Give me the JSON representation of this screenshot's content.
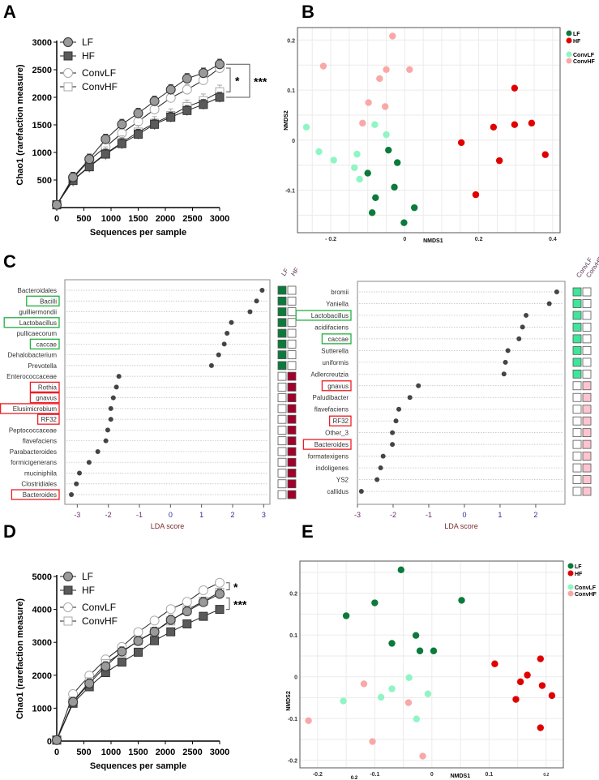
{
  "panel_letters": [
    "A",
    "B",
    "C",
    "D",
    "E"
  ],
  "colors": {
    "LF": "#0b7a3b",
    "HF": "#e00000",
    "ConvLF": "#8ff5c4",
    "ConvHF": "#f9a8a8",
    "lda_LF": "#0b7a3b",
    "lda_HF": "#a0002a",
    "lda_ConvLF": "#3ee69a",
    "lda_ConvHF": "#ffc4cf",
    "box_green": "#22b040",
    "box_red": "#ee1c24"
  },
  "chart_data": [
    {
      "id": "A",
      "type": "line",
      "title": "",
      "xlabel": "Sequences per sample",
      "ylabel": "Chao1 (rarefaction measure)",
      "xlim": [
        0,
        3000
      ],
      "ylim": [
        0,
        3000
      ],
      "xticks": [
        0,
        500,
        1000,
        1500,
        2000,
        2500,
        3000
      ],
      "yticks": [
        500,
        1000,
        1500,
        2000,
        2500,
        3000
      ],
      "x": [
        0,
        300,
        600,
        900,
        1200,
        1500,
        1800,
        2100,
        2400,
        2700,
        3000
      ],
      "series": [
        {
          "name": "LF",
          "marker": "circle",
          "fill": "#9a9a9a",
          "values": [
            50,
            550,
            880,
            1240,
            1510,
            1710,
            1930,
            2140,
            2340,
            2440,
            2600
          ],
          "err": 90
        },
        {
          "name": "HF",
          "marker": "square",
          "fill": "#5a5a5a",
          "values": [
            50,
            490,
            740,
            970,
            1160,
            1330,
            1510,
            1640,
            1760,
            1870,
            2000
          ],
          "err": 90
        },
        {
          "name": "ConvLF",
          "marker": "circle",
          "fill": "#ffffff",
          "values": [
            50,
            530,
            860,
            1100,
            1350,
            1560,
            1780,
            1990,
            2140,
            2310,
            2530
          ],
          "err": 90
        },
        {
          "name": "ConvHF",
          "marker": "square",
          "fill": "#ffffff",
          "values": [
            50,
            500,
            750,
            980,
            1180,
            1370,
            1530,
            1670,
            1830,
            1940,
            2100
          ],
          "err": 120
        }
      ],
      "significance": [
        {
          "label": "*",
          "between": [
            "ConvLF",
            "ConvHF"
          ]
        },
        {
          "label": "***",
          "between": [
            "LF",
            "HF"
          ]
        }
      ]
    },
    {
      "id": "B",
      "type": "scatter",
      "xlabel": "NMDS1",
      "ylabel": "NMDS2",
      "xlim": [
        -0.29,
        0.42
      ],
      "ylim": [
        -0.185,
        0.225
      ],
      "xticks": [
        -0.2,
        0,
        0.2,
        0.4
      ],
      "xtick_labels": [
        "- 0.2",
        "0",
        "0.2",
        "0.4"
      ],
      "yticks": [
        -0.1,
        0,
        0.1,
        0.2
      ],
      "ytick_labels": [
        "-0.1",
        "0",
        "0.1",
        "0.2"
      ],
      "grid": true,
      "legend": "right",
      "series": [
        {
          "name": "LF",
          "points": [
            [
              -0.044,
              -0.02
            ],
            [
              -0.02,
              -0.045
            ],
            [
              -0.1,
              -0.066
            ],
            [
              -0.028,
              -0.094
            ],
            [
              -0.079,
              -0.115
            ],
            [
              0.026,
              -0.135
            ],
            [
              -0.088,
              -0.145
            ],
            [
              -0.002,
              -0.165
            ]
          ]
        },
        {
          "name": "HF",
          "points": [
            [
              0.297,
              0.104
            ],
            [
              0.24,
              0.026
            ],
            [
              0.297,
              0.031
            ],
            [
              0.343,
              0.034
            ],
            [
              0.153,
              -0.005
            ],
            [
              0.38,
              -0.029
            ],
            [
              0.256,
              -0.041
            ],
            [
              0.192,
              -0.109
            ]
          ]
        },
        {
          "name": "ConvLF",
          "points": [
            [
              -0.266,
              0.026
            ],
            [
              -0.081,
              0.031
            ],
            [
              -0.05,
              0.011
            ],
            [
              -0.232,
              -0.023
            ],
            [
              -0.129,
              -0.028
            ],
            [
              -0.192,
              -0.04
            ],
            [
              -0.136,
              -0.055
            ],
            [
              -0.122,
              -0.078
            ]
          ]
        },
        {
          "name": "ConvHF",
          "points": [
            [
              -0.033,
              0.208
            ],
            [
              -0.22,
              0.148
            ],
            [
              -0.05,
              0.141
            ],
            [
              0.013,
              0.141
            ],
            [
              -0.068,
              0.123
            ],
            [
              -0.098,
              0.075
            ],
            [
              -0.053,
              0.067
            ],
            [
              -0.114,
              0.034
            ]
          ]
        }
      ]
    },
    {
      "id": "C-left",
      "type": "lollipop",
      "xlabel": "LDA score",
      "xlim": [
        -3.4,
        3.2
      ],
      "xticks": [
        -3,
        -2,
        -1,
        0,
        1,
        2,
        3
      ],
      "groups": [
        "LF",
        "HF"
      ],
      "rows": [
        {
          "label": "Bacteroidales",
          "value": 2.95,
          "group": "LF",
          "box": ""
        },
        {
          "label": "Bacilli",
          "value": 2.77,
          "group": "LF",
          "box": "green"
        },
        {
          "label": "guilliermondii",
          "value": 2.56,
          "group": "LF",
          "box": ""
        },
        {
          "label": "Lactobacillus",
          "value": 1.96,
          "group": "LF",
          "box": "green"
        },
        {
          "label": "pullicaecorum",
          "value": 1.82,
          "group": "LF",
          "box": ""
        },
        {
          "label": "caccae",
          "value": 1.73,
          "group": "LF",
          "box": "green"
        },
        {
          "label": "Dehalobacterium",
          "value": 1.55,
          "group": "LF",
          "box": ""
        },
        {
          "label": "Prevotella",
          "value": 1.32,
          "group": "LF",
          "box": ""
        },
        {
          "label": "Enterococcaceae",
          "value": -1.66,
          "group": "HF",
          "box": ""
        },
        {
          "label": "Rothia",
          "value": -1.74,
          "group": "HF",
          "box": "red"
        },
        {
          "label": "gnavus",
          "value": -1.84,
          "group": "HF",
          "box": "red"
        },
        {
          "label": "Elusimicrobium",
          "value": -1.92,
          "group": "HF",
          "box": "red"
        },
        {
          "label": "RF32",
          "value": -1.92,
          "group": "HF",
          "box": "red"
        },
        {
          "label": "Peptococcaceae",
          "value": -2.02,
          "group": "HF",
          "box": ""
        },
        {
          "label": "flavefaciens",
          "value": -2.08,
          "group": "HF",
          "box": ""
        },
        {
          "label": "Parabacteroides",
          "value": -2.34,
          "group": "HF",
          "box": ""
        },
        {
          "label": "formicigenerans",
          "value": -2.62,
          "group": "HF",
          "box": ""
        },
        {
          "label": "muciniphila",
          "value": -2.93,
          "group": "HF",
          "box": ""
        },
        {
          "label": "Clostridiales",
          "value": -3.03,
          "group": "HF",
          "box": ""
        },
        {
          "label": "Bacteroides",
          "value": -3.19,
          "group": "HF",
          "box": "red"
        }
      ]
    },
    {
      "id": "C-right",
      "type": "lollipop",
      "xlabel": "LDA score",
      "xlim": [
        -3.0,
        2.82
      ],
      "xticks": [
        -3,
        -2,
        -1,
        0,
        1,
        2
      ],
      "groups": [
        "ConvLF",
        "ConvHF"
      ],
      "rows": [
        {
          "label": "bromii",
          "value": 2.59,
          "group": "ConvLF",
          "box": ""
        },
        {
          "label": "Yaniella",
          "value": 2.38,
          "group": "ConvLF",
          "box": ""
        },
        {
          "label": "Lactobacillus",
          "value": 1.73,
          "group": "ConvLF",
          "box": "green"
        },
        {
          "label": "acidifaciens",
          "value": 1.63,
          "group": "ConvLF",
          "box": ""
        },
        {
          "label": "caccae",
          "value": 1.53,
          "group": "ConvLF",
          "box": "green"
        },
        {
          "label": "Sutterella",
          "value": 1.22,
          "group": "ConvLF",
          "box": ""
        },
        {
          "label": "uniformis",
          "value": 1.15,
          "group": "ConvLF",
          "box": ""
        },
        {
          "label": "Adlercreutzia",
          "value": 1.11,
          "group": "ConvLF",
          "box": ""
        },
        {
          "label": "gnavus",
          "value": -1.29,
          "group": "ConvHF",
          "box": "red"
        },
        {
          "label": "Paludibacter",
          "value": -1.53,
          "group": "ConvHF",
          "box": ""
        },
        {
          "label": "flavefaciens",
          "value": -1.84,
          "group": "ConvHF",
          "box": ""
        },
        {
          "label": "RF32",
          "value": -1.92,
          "group": "ConvHF",
          "box": "red"
        },
        {
          "label": "Other_3",
          "value": -2.02,
          "group": "ConvHF",
          "box": ""
        },
        {
          "label": "Bacteroides",
          "value": -2.02,
          "group": "ConvHF",
          "box": "red"
        },
        {
          "label": "formatexigens",
          "value": -2.28,
          "group": "ConvHF",
          "box": ""
        },
        {
          "label": "indoligenes",
          "value": -2.35,
          "group": "ConvHF",
          "box": ""
        },
        {
          "label": "YS2",
          "value": -2.45,
          "group": "ConvHF",
          "box": ""
        },
        {
          "label": "callidus",
          "value": -2.89,
          "group": "ConvHF",
          "box": ""
        }
      ]
    },
    {
      "id": "D",
      "type": "line",
      "xlabel": "Sequences per sample",
      "ylabel": "Chao1 (rarefaction measure)",
      "xlim": [
        0,
        3000
      ],
      "ylim": [
        0,
        5000
      ],
      "xticks": [
        0,
        500,
        1000,
        1500,
        2000,
        2500,
        3000
      ],
      "yticks": [
        0,
        1000,
        2000,
        3000,
        4000,
        5000
      ],
      "x": [
        0,
        300,
        600,
        900,
        1200,
        1500,
        1800,
        2100,
        2400,
        2700,
        3000
      ],
      "series": [
        {
          "name": "LF",
          "marker": "circle",
          "fill": "#9a9a9a",
          "values": [
            30,
            1190,
            1750,
            2270,
            2720,
            3040,
            3320,
            3680,
            3940,
            4220,
            4470
          ],
          "err": 140
        },
        {
          "name": "HF",
          "marker": "square",
          "fill": "#5a5a5a",
          "values": [
            30,
            1150,
            1650,
            2080,
            2400,
            2700,
            3050,
            3320,
            3560,
            3790,
            4000
          ],
          "err": 60
        },
        {
          "name": "ConvLF",
          "marker": "circle",
          "fill": "#ffffff",
          "values": [
            30,
            1430,
            1990,
            2480,
            2860,
            3310,
            3660,
            4010,
            4230,
            4580,
            4810
          ],
          "err": 110
        },
        {
          "name": "ConvHF",
          "marker": "square",
          "fill": "#ffffff",
          "values": [
            30,
            1200,
            1800,
            2350,
            2700,
            3050,
            3330,
            3650,
            3980,
            4250,
            4520
          ],
          "err": 120
        }
      ],
      "significance": [
        {
          "label": "*",
          "between": [
            "ConvLF",
            "LF"
          ]
        },
        {
          "label": "***",
          "between": [
            "LF",
            "HF"
          ]
        }
      ]
    },
    {
      "id": "E",
      "type": "scatter",
      "xlabel": "NMDS1",
      "ylabel": "NMDS2",
      "xlim": [
        -0.231,
        0.23
      ],
      "ylim": [
        -0.218,
        0.277
      ],
      "xticks": [
        -0.2,
        -0.1,
        0,
        0.1,
        0.2
      ],
      "xtick_labels": [
        "-0.2",
        "-0.1",
        "0",
        "0.1",
        "0.2"
      ],
      "yticks": [
        -0.2,
        -0.1,
        0,
        0.1,
        0.2
      ],
      "ytick_labels": [
        "-0.2",
        "-0.1",
        "0",
        "0.1",
        "0.2"
      ],
      "extra_label": "0.2",
      "grid": true,
      "legend": "right",
      "series": [
        {
          "name": "LF",
          "points": [
            [
              -0.054,
              0.256
            ],
            [
              -0.1,
              0.177
            ],
            [
              0.052,
              0.183
            ],
            [
              -0.15,
              0.146
            ],
            [
              -0.028,
              0.099
            ],
            [
              -0.07,
              0.08
            ],
            [
              -0.021,
              0.062
            ],
            [
              0.003,
              0.062
            ]
          ]
        },
        {
          "name": "HF",
          "points": [
            [
              0.11,
              0.031
            ],
            [
              0.19,
              0.043
            ],
            [
              0.167,
              0.004
            ],
            [
              0.155,
              -0.012
            ],
            [
              0.193,
              -0.021
            ],
            [
              0.21,
              -0.045
            ],
            [
              0.147,
              -0.054
            ],
            [
              0.19,
              -0.122
            ]
          ]
        },
        {
          "name": "ConvLF",
          "points": [
            [
              -0.04,
              -0.002
            ],
            [
              -0.07,
              -0.029
            ],
            [
              -0.007,
              -0.041
            ],
            [
              -0.089,
              -0.049
            ],
            [
              -0.155,
              -0.058
            ],
            [
              -0.027,
              -0.101
            ]
          ]
        },
        {
          "name": "ConvHF",
          "points": [
            [
              -0.119,
              -0.017
            ],
            [
              -0.041,
              -0.062
            ],
            [
              -0.216,
              -0.105
            ],
            [
              -0.104,
              -0.155
            ],
            [
              -0.016,
              -0.19
            ]
          ]
        }
      ]
    }
  ]
}
